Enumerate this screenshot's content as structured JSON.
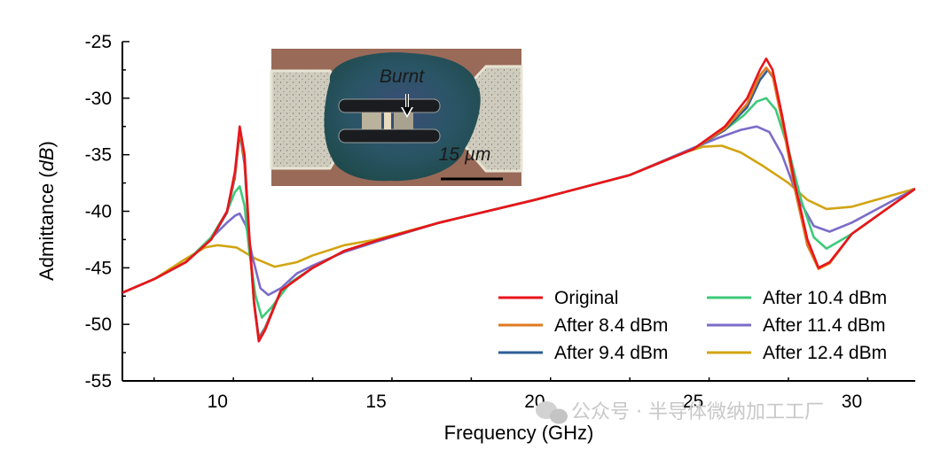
{
  "chart_data": {
    "type": "line",
    "xlabel": "Frequency (GHz)",
    "ylabel_main": "Admittance (",
    "ylabel_unit": "dB",
    "ylabel_close": ")",
    "xlim": [
      7,
      32
    ],
    "ylim": [
      -55,
      -25
    ],
    "x_ticks": [
      10,
      15,
      20,
      25,
      30
    ],
    "y_ticks": [
      -55,
      -50,
      -45,
      -40,
      -35,
      -30,
      -25
    ],
    "x_tick_labels": [
      "10",
      "15",
      "20",
      "25",
      "30"
    ],
    "y_tick_labels": [
      "-55",
      "-50",
      "-45",
      "-40",
      "-35",
      "-30",
      "-25"
    ],
    "legend_position": "bottom-right",
    "series": [
      {
        "name": "Original",
        "color": "#e8141c",
        "points": [
          [
            7,
            -47.2
          ],
          [
            8,
            -46.0
          ],
          [
            9,
            -44.5
          ],
          [
            9.8,
            -42.5
          ],
          [
            10.3,
            -40.0
          ],
          [
            10.55,
            -36.5
          ],
          [
            10.7,
            -32.5
          ],
          [
            10.85,
            -35.0
          ],
          [
            11.0,
            -42.0
          ],
          [
            11.15,
            -48.0
          ],
          [
            11.3,
            -51.5
          ],
          [
            11.5,
            -50.5
          ],
          [
            12,
            -47.0
          ],
          [
            13,
            -45.0
          ],
          [
            14,
            -43.5
          ],
          [
            15,
            -42.6
          ],
          [
            17,
            -41.0
          ],
          [
            20,
            -39.0
          ],
          [
            23,
            -36.8
          ],
          [
            25,
            -34.5
          ],
          [
            26,
            -32.5
          ],
          [
            26.7,
            -30.0
          ],
          [
            27.1,
            -27.5
          ],
          [
            27.3,
            -26.5
          ],
          [
            27.5,
            -27.5
          ],
          [
            27.8,
            -31.5
          ],
          [
            28.2,
            -37.5
          ],
          [
            28.6,
            -42.5
          ],
          [
            28.95,
            -45.0
          ],
          [
            29.3,
            -44.5
          ],
          [
            30,
            -42.0
          ],
          [
            31,
            -40.0
          ],
          [
            32,
            -38.0
          ]
        ]
      },
      {
        "name": "After 8.4 dBm",
        "color": "#e07a1f",
        "points": [
          [
            7,
            -47.2
          ],
          [
            8,
            -46.0
          ],
          [
            9,
            -44.5
          ],
          [
            9.8,
            -42.5
          ],
          [
            10.3,
            -40.0
          ],
          [
            10.55,
            -36.8
          ],
          [
            10.7,
            -32.8
          ],
          [
            10.85,
            -35.5
          ],
          [
            11.0,
            -42.3
          ],
          [
            11.15,
            -48.2
          ],
          [
            11.3,
            -51.4
          ],
          [
            11.5,
            -50.4
          ],
          [
            12,
            -47.0
          ],
          [
            13,
            -45.0
          ],
          [
            14,
            -43.5
          ],
          [
            15,
            -42.6
          ],
          [
            17,
            -41.0
          ],
          [
            20,
            -39.0
          ],
          [
            23,
            -36.8
          ],
          [
            25,
            -34.5
          ],
          [
            26,
            -32.7
          ],
          [
            26.7,
            -30.5
          ],
          [
            27.1,
            -28.0
          ],
          [
            27.3,
            -27.3
          ],
          [
            27.5,
            -28.0
          ],
          [
            27.8,
            -32.0
          ],
          [
            28.2,
            -38.0
          ],
          [
            28.6,
            -43.0
          ],
          [
            28.95,
            -45.1
          ],
          [
            29.3,
            -44.6
          ],
          [
            30,
            -42.0
          ],
          [
            31,
            -40.0
          ],
          [
            32,
            -38.0
          ]
        ]
      },
      {
        "name": "After 9.4 dBm",
        "color": "#2e5d94",
        "points": [
          [
            7,
            -47.2
          ],
          [
            8,
            -46.0
          ],
          [
            9,
            -44.5
          ],
          [
            9.8,
            -42.5
          ],
          [
            10.3,
            -40.1
          ],
          [
            10.55,
            -37.0
          ],
          [
            10.7,
            -33.0
          ],
          [
            10.85,
            -35.8
          ],
          [
            11.0,
            -42.5
          ],
          [
            11.15,
            -48.0
          ],
          [
            11.3,
            -51.2
          ],
          [
            11.5,
            -50.3
          ],
          [
            12,
            -47.0
          ],
          [
            13,
            -45.0
          ],
          [
            14,
            -43.5
          ],
          [
            15,
            -42.6
          ],
          [
            17,
            -41.0
          ],
          [
            20,
            -39.0
          ],
          [
            23,
            -36.8
          ],
          [
            25,
            -34.5
          ],
          [
            26,
            -32.8
          ],
          [
            26.7,
            -30.8
          ],
          [
            27.1,
            -28.4
          ],
          [
            27.35,
            -27.5
          ],
          [
            27.55,
            -28.3
          ],
          [
            27.85,
            -32.5
          ],
          [
            28.25,
            -38.5
          ],
          [
            28.6,
            -43.0
          ],
          [
            28.95,
            -45.0
          ],
          [
            29.3,
            -44.6
          ],
          [
            30,
            -42.0
          ],
          [
            31,
            -40.0
          ],
          [
            32,
            -38.0
          ]
        ]
      },
      {
        "name": "After 10.4 dBm",
        "color": "#3ec97a",
        "points": [
          [
            7,
            -47.2
          ],
          [
            8,
            -46.0
          ],
          [
            9,
            -44.5
          ],
          [
            9.8,
            -42.3
          ],
          [
            10.3,
            -40.0
          ],
          [
            10.55,
            -38.3
          ],
          [
            10.7,
            -37.8
          ],
          [
            10.85,
            -39.5
          ],
          [
            11.0,
            -43.5
          ],
          [
            11.2,
            -47.5
          ],
          [
            11.4,
            -49.4
          ],
          [
            11.7,
            -48.5
          ],
          [
            12.3,
            -46.3
          ],
          [
            13,
            -45.0
          ],
          [
            14,
            -43.5
          ],
          [
            15,
            -42.6
          ],
          [
            17,
            -41.0
          ],
          [
            20,
            -39.0
          ],
          [
            23,
            -36.8
          ],
          [
            25,
            -34.5
          ],
          [
            26,
            -32.8
          ],
          [
            26.6,
            -31.5
          ],
          [
            27.0,
            -30.3
          ],
          [
            27.3,
            -30.0
          ],
          [
            27.6,
            -31.0
          ],
          [
            28.0,
            -34.5
          ],
          [
            28.4,
            -39.0
          ],
          [
            28.8,
            -42.3
          ],
          [
            29.2,
            -43.3
          ],
          [
            30,
            -42.0
          ],
          [
            31,
            -40.0
          ],
          [
            32,
            -38.0
          ]
        ]
      },
      {
        "name": "After 11.4 dBm",
        "color": "#7b6cc9",
        "points": [
          [
            7,
            -47.2
          ],
          [
            8,
            -46.0
          ],
          [
            9,
            -44.5
          ],
          [
            9.8,
            -42.4
          ],
          [
            10.3,
            -41.0
          ],
          [
            10.55,
            -40.4
          ],
          [
            10.7,
            -40.2
          ],
          [
            10.9,
            -41.3
          ],
          [
            11.1,
            -44.0
          ],
          [
            11.35,
            -46.8
          ],
          [
            11.6,
            -47.4
          ],
          [
            12,
            -46.8
          ],
          [
            12.5,
            -45.5
          ],
          [
            13,
            -44.8
          ],
          [
            14,
            -43.6
          ],
          [
            15,
            -42.7
          ],
          [
            17,
            -41.0
          ],
          [
            20,
            -39.0
          ],
          [
            23,
            -36.8
          ],
          [
            25,
            -34.4
          ],
          [
            25.8,
            -33.5
          ],
          [
            26.5,
            -32.8
          ],
          [
            27.0,
            -32.5
          ],
          [
            27.4,
            -33.0
          ],
          [
            27.8,
            -35.0
          ],
          [
            28.3,
            -38.8
          ],
          [
            28.8,
            -41.3
          ],
          [
            29.3,
            -41.8
          ],
          [
            30,
            -41.0
          ],
          [
            31,
            -39.5
          ],
          [
            32,
            -38.0
          ]
        ]
      },
      {
        "name": "After 12.4 dBm",
        "color": "#d2a412",
        "points": [
          [
            7,
            -47.2
          ],
          [
            8,
            -46.0
          ],
          [
            9,
            -44.2
          ],
          [
            9.6,
            -43.2
          ],
          [
            10.0,
            -43.0
          ],
          [
            10.6,
            -43.2
          ],
          [
            11.2,
            -44.2
          ],
          [
            11.8,
            -44.9
          ],
          [
            12.5,
            -44.5
          ],
          [
            13,
            -43.9
          ],
          [
            14,
            -43.0
          ],
          [
            15,
            -42.5
          ],
          [
            17,
            -41.0
          ],
          [
            20,
            -39.0
          ],
          [
            23,
            -36.8
          ],
          [
            24.5,
            -35.0
          ],
          [
            25.3,
            -34.3
          ],
          [
            25.9,
            -34.2
          ],
          [
            26.5,
            -34.8
          ],
          [
            27.2,
            -36.0
          ],
          [
            28.0,
            -37.5
          ],
          [
            28.6,
            -39.0
          ],
          [
            29.2,
            -39.8
          ],
          [
            30,
            -39.6
          ],
          [
            31,
            -38.8
          ],
          [
            32,
            -38.0
          ]
        ]
      }
    ],
    "inset": {
      "label_burnt": "Burnt",
      "scale_label": "15 µm"
    }
  },
  "watermark": "公众号 · 半导体微纳加工工厂"
}
